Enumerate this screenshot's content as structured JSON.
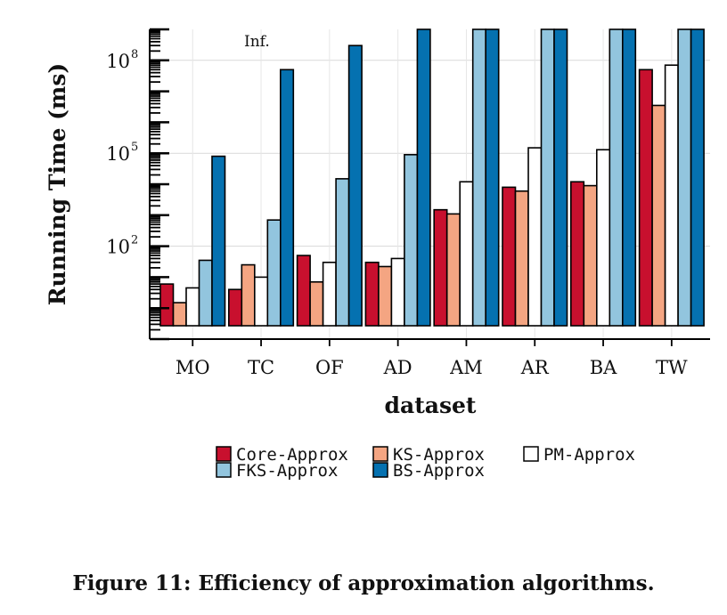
{
  "chart_data": {
    "type": "bar",
    "title": "",
    "xlabel": "dataset",
    "ylabel": "Running Time (ms)",
    "y_scale": "log",
    "ylim": [
      0.1,
      1000000000
    ],
    "y_ticks": [
      {
        "value": 100,
        "base": "10",
        "exp": "2"
      },
      {
        "value": 100000,
        "base": "10",
        "exp": "5"
      },
      {
        "value": 100000000,
        "base": "10",
        "exp": "8"
      }
    ],
    "grid": true,
    "legend_position": "bottom",
    "categories": [
      "MO",
      "TC",
      "OF",
      "AD",
      "AM",
      "AR",
      "BA",
      "TW"
    ],
    "annotation": "Inf.",
    "series": [
      {
        "name": "Core-Approx",
        "color": "#c8102e",
        "values": [
          6,
          4,
          50,
          30,
          1500,
          8000,
          12000,
          50000000
        ]
      },
      {
        "name": "KS-Approx",
        "color": "#f4a582",
        "values": [
          1.5,
          25,
          7,
          22,
          1100,
          6000,
          9000,
          3500000
        ]
      },
      {
        "name": "PM-Approx",
        "color": "#ffffff",
        "values": [
          4.5,
          10,
          30,
          40,
          12000,
          150000,
          130000,
          70000000
        ]
      },
      {
        "name": "FKS-Approx",
        "color": "#92c5de",
        "values": [
          35,
          700,
          15000,
          90000,
          null,
          null,
          null,
          null
        ]
      },
      {
        "name": "BS-Approx",
        "color": "#0571b0",
        "values": [
          80000,
          50000000,
          300000000,
          null,
          null,
          null,
          null,
          null
        ]
      }
    ]
  },
  "caption": "Figure 11: Efficiency of approximation algorithms."
}
